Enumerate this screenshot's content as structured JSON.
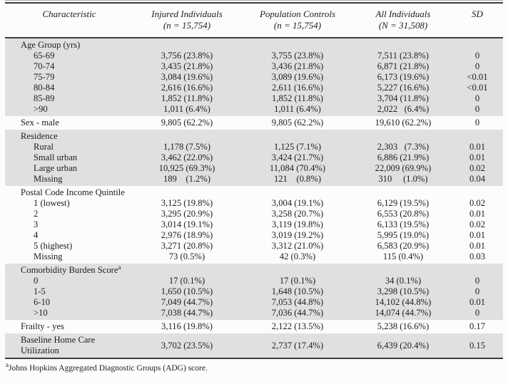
{
  "colors": {
    "shaded_section_bg": "#e0e0e0",
    "rule_dark": "#3d3d3d",
    "rule_light": "#adadad",
    "text": "#1d1d1d"
  },
  "footnote": {
    "sup": "a",
    "text": "Johns Hopkins Aggregated Diagnostic Groups (ADG) score."
  },
  "table": {
    "columns": [
      {
        "label": "Characteristic",
        "sub": ""
      },
      {
        "label": "Injured Individuals",
        "sub": "(n = 15,754)"
      },
      {
        "label": "Population Controls",
        "sub": "(n = 15,754)"
      },
      {
        "label": "All Individuals",
        "sub": "(N = 31,508)"
      },
      {
        "label": "SD",
        "sub": ""
      }
    ],
    "sections": [
      {
        "label": "Age Group (yrs)",
        "shaded": true,
        "single": false,
        "rows": [
          {
            "label": "65-69",
            "injured": "3,756 (23.8%)",
            "controls": "3,755 (23.8%)",
            "all": "7,511 (23.8%)",
            "sd": "0"
          },
          {
            "label": "70-74",
            "injured": "3,435 (21.8%)",
            "controls": "3,436 (21.8%)",
            "all": "6,871 (21.8%)",
            "sd": "0"
          },
          {
            "label": "75-79",
            "injured": "3,084 (19.6%)",
            "controls": "3,089 (19.6%)",
            "all": "6,173 (19.6%)",
            "sd": "<0.01"
          },
          {
            "label": "80-84",
            "injured": "2,616 (16.6%)",
            "controls": "2,611 (16.6%)",
            "all": "5,227 (16.6%)",
            "sd": "<0.01"
          },
          {
            "label": "85-89",
            "injured": "1,852 (11.8%)",
            "controls": "1,852 (11.8%)",
            "all": "3,704 (11.8%)",
            "sd": "0"
          },
          {
            "label": ">90",
            "injured": "1,011 (6.4%)",
            "controls": "1,011 (6.4%)",
            "all": "2,022   (6.4%)",
            "sd": "0"
          }
        ]
      },
      {
        "label": "Sex - male",
        "shaded": false,
        "single": true,
        "values": {
          "injured": "9,805 (62.2%)",
          "controls": "9,805 (62.2%)",
          "all": "19,610 (62.2%)",
          "sd": "0"
        }
      },
      {
        "label": "Residence",
        "shaded": true,
        "single": false,
        "rows": [
          {
            "label": "Rural",
            "injured": "1,178 (7.5%)",
            "controls": "1,125 (7.1%)",
            "all": "2,303   (7.3%)",
            "sd": "0.01"
          },
          {
            "label": "Small urban",
            "injured": "3,462 (22.0%)",
            "controls": "3,424 (21.7%)",
            "all": "6,886 (21.9%)",
            "sd": "0.01"
          },
          {
            "label": "Large urban",
            "injured": "10,925 (69.3%)",
            "controls": "11,084 (70.4%)",
            "all": "22,009 (69.9%)",
            "sd": "0.02"
          },
          {
            "label": "Missing",
            "injured": "189    (1.2%)",
            "controls": "121    (0.8%)",
            "all": "310     (1.0%)",
            "sd": "0.04"
          }
        ]
      },
      {
        "label": "Postal Code Income Quintile",
        "shaded": false,
        "single": false,
        "rows": [
          {
            "label": "1 (lowest)",
            "injured": "3,125 (19.8%)",
            "controls": "3,004 (19.1%)",
            "all": "6,129 (19.5%)",
            "sd": "0.02"
          },
          {
            "label": "2",
            "injured": "3,295 (20.9%)",
            "controls": "3,258 (20.7%)",
            "all": "6,553 (20.8%)",
            "sd": "0.01"
          },
          {
            "label": "3",
            "injured": "3,014 (19.1%)",
            "controls": "3,119 (19.8%)",
            "all": "6,133 (19.5%)",
            "sd": "0.02"
          },
          {
            "label": "4",
            "injured": "2,976 (18.9%)",
            "controls": "3,019 (19.2%)",
            "all": "5,995 (19.0%)",
            "sd": "0.01"
          },
          {
            "label": "5 (highest)",
            "injured": "3,271 (20.8%)",
            "controls": "3,312 (21.0%)",
            "all": "6,583 (20.9%)",
            "sd": "0.01"
          },
          {
            "label": "Missing",
            "injured": "73 (0.5%)",
            "controls": "42 (0.3%)",
            "all": "115 (0.4%)",
            "sd": "0.03"
          }
        ]
      },
      {
        "label": "Comorbidity Burden Score",
        "label_sup": "a",
        "shaded": true,
        "single": false,
        "rows": [
          {
            "label": "0",
            "injured": "17 (0.1%)",
            "controls": "17 (0.1%)",
            "all": "34 (0.1%)",
            "sd": "0"
          },
          {
            "label": "1-5",
            "injured": "1,650 (10.5%)",
            "controls": "1,648 (10.5%)",
            "all": "3,298 (10.5%)",
            "sd": "0"
          },
          {
            "label": "6-10",
            "injured": "7,049 (44.7%)",
            "controls": "7,053 (44.8%)",
            "all": "14,102 (44.8%)",
            "sd": "0.01"
          },
          {
            "label": ">10",
            "injured": "7,038 (44.7%)",
            "controls": "7,036 (44.7%)",
            "all": "14,074 (44.7%)",
            "sd": "0"
          }
        ]
      },
      {
        "label": "Frailty - yes",
        "shaded": false,
        "single": true,
        "values": {
          "injured": "3,116 (19.8%)",
          "controls": "2,122 (13.5%)",
          "all": "5,238 (16.6%)",
          "sd": "0.17"
        }
      },
      {
        "label": "Baseline Home Care Utilization",
        "shaded": true,
        "single": true,
        "values": {
          "injured": "3,702 (23.5%)",
          "controls": "2,737 (17.4%)",
          "all": "6,439 (20.4%)",
          "sd": "0.15"
        }
      }
    ]
  }
}
